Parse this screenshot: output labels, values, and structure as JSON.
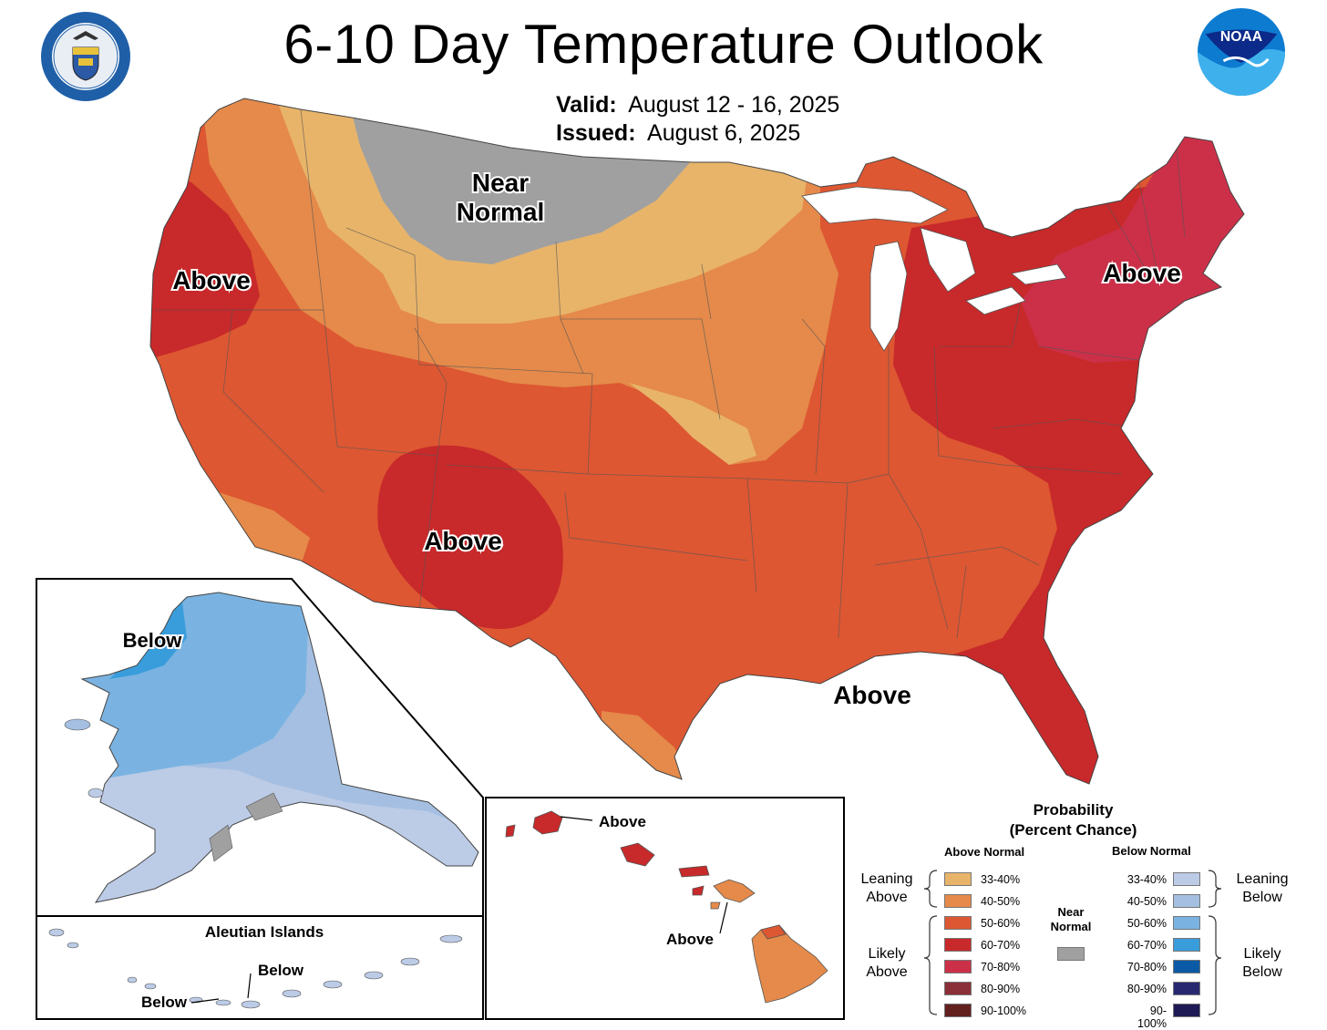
{
  "header": {
    "title": "6-10 Day Temperature Outlook",
    "valid_label": "Valid:",
    "valid_value": "August 12 - 16, 2025",
    "issued_label": "Issued:",
    "issued_value": "August 6, 2025",
    "left_logo": "Department of Commerce seal",
    "right_logo": "NOAA logo"
  },
  "map_labels": {
    "near_normal_1": "Near",
    "near_normal_2": "Normal",
    "west_coast": "Above",
    "southwest": "Above",
    "northeast": "Above",
    "gulf": "Above",
    "alaska": "Below",
    "aleutian_title": "Aleutian Islands",
    "aleutian_1": "Below",
    "aleutian_2": "Below",
    "hawaii_1": "Above",
    "hawaii_2": "Above"
  },
  "legend": {
    "title_1": "Probability",
    "title_2": "(Percent Chance)",
    "above_header": "Above Normal",
    "below_header": "Below Normal",
    "leaning_above": "Leaning Above",
    "likely_above": "Likely Above",
    "leaning_below": "Leaning Below",
    "likely_below": "Likely Below",
    "near_normal_1": "Near",
    "near_normal_2": "Normal",
    "near_normal_color": "#a0a0a0",
    "above": [
      {
        "range": "33-40%",
        "color": "#e8b46a"
      },
      {
        "range": "40-50%",
        "color": "#e58a4a"
      },
      {
        "range": "50-60%",
        "color": "#dd5732"
      },
      {
        "range": "60-70%",
        "color": "#c8292a"
      },
      {
        "range": "70-80%",
        "color": "#cc3048"
      },
      {
        "range": "80-90%",
        "color": "#8b3038"
      },
      {
        "range": "90-100%",
        "color": "#62201f"
      }
    ],
    "below": [
      {
        "range": "33-40%",
        "color": "#bccbe6"
      },
      {
        "range": "40-50%",
        "color": "#a4bfe1"
      },
      {
        "range": "50-60%",
        "color": "#7ab3e1"
      },
      {
        "range": "60-70%",
        "color": "#3a9ddb"
      },
      {
        "range": "70-80%",
        "color": "#0a5aa5"
      },
      {
        "range": "80-90%",
        "color": "#282870"
      },
      {
        "range": "90-100%",
        "color": "#1e1a55"
      }
    ]
  }
}
